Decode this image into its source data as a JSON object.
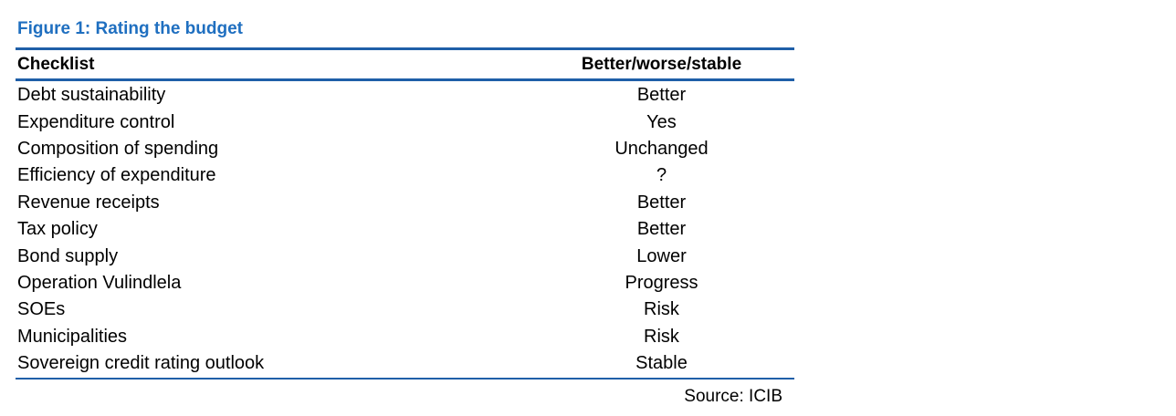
{
  "figure": {
    "title": "Figure 1: Rating the budget",
    "title_color": "#1f6fc0",
    "rule_color": "#1f5fa8",
    "source": "Source: ICIB"
  },
  "table": {
    "headers": [
      "Checklist",
      "Better/worse/stable"
    ],
    "rows": [
      {
        "item": "Debt sustainability",
        "rating": "Better"
      },
      {
        "item": "Expenditure control",
        "rating": "Yes"
      },
      {
        "item": "Composition of spending",
        "rating": "Unchanged"
      },
      {
        "item": "Efficiency of expenditure",
        "rating": "?"
      },
      {
        "item": "Revenue receipts",
        "rating": "Better"
      },
      {
        "item": "Tax policy",
        "rating": "Better"
      },
      {
        "item": "Bond supply",
        "rating": "Lower"
      },
      {
        "item": "Operation Vulindlela",
        "rating": "Progress"
      },
      {
        "item": "SOEs",
        "rating": "Risk"
      },
      {
        "item": "Municipalities",
        "rating": "Risk"
      },
      {
        "item": "Sovereign credit rating outlook",
        "rating": "Stable"
      }
    ]
  }
}
